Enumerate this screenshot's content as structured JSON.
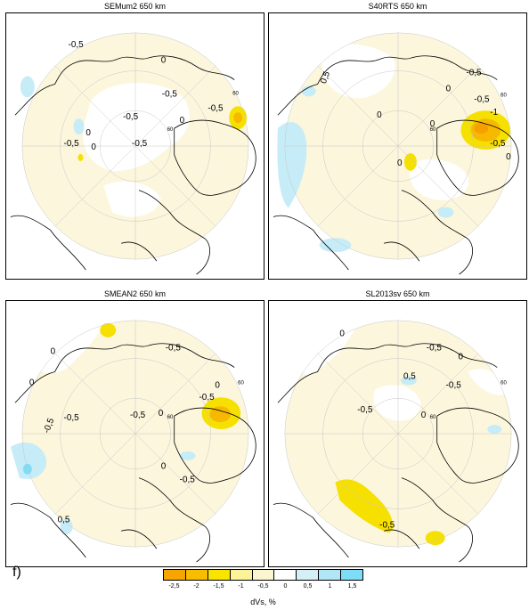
{
  "panels": [
    {
      "title": "SEMum2 650 km",
      "lat_label": "60",
      "contour_labels": [
        "-0,5",
        "0",
        "-0,5",
        "0",
        "-0,5",
        "-0,5",
        "0",
        "0",
        "-0,5",
        "-0,5"
      ]
    },
    {
      "title": "S40RTS 650 km",
      "lat_label": "60",
      "contour_labels": [
        "0,5",
        "-0,5",
        "0",
        "0",
        "-0,5",
        "0",
        "-1",
        "-0,5",
        "0",
        "0"
      ]
    },
    {
      "title": "SMEAN2 650 km",
      "lat_label": "60",
      "contour_labels": [
        "0",
        "0",
        "-0,5",
        "-0,5",
        "-0,5",
        "0",
        "0",
        "-0,5",
        "-0,5",
        "-0,5",
        "0",
        "0,5"
      ]
    },
    {
      "title": "SL2013sv 650 km",
      "lat_label": "60",
      "contour_labels": [
        "-0,5",
        "0",
        "-0,5",
        "0",
        "-0,5",
        "0,5",
        "0",
        "-0,5"
      ]
    }
  ],
  "figure_label": "f)",
  "colorbar": {
    "label": "dVs, %",
    "ticks": [
      "-2,5",
      "-2",
      "-1,5",
      "-1",
      "-0,5",
      "0",
      "0,5",
      "1",
      "1,5"
    ],
    "colors": [
      "#f7a500",
      "#f8bd00",
      "#f9e400",
      "#fbf29a",
      "#fbf6cf",
      "#ffffff",
      "#d5eff6",
      "#b1e6f6",
      "#7fdcf6"
    ]
  }
}
